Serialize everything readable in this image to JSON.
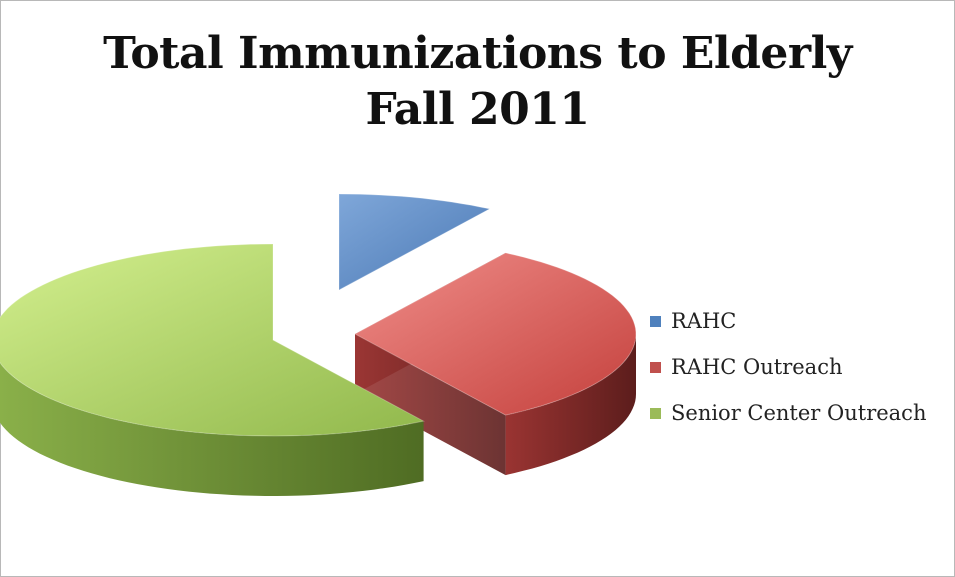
{
  "chart_data": {
    "type": "pie",
    "title": [
      "Total Immunizations to Elderly",
      "Fall 2011"
    ],
    "slices": [
      {
        "label": "RAHC",
        "value": 9,
        "color": "#4f81bd"
      },
      {
        "label": "RAHC Outreach",
        "value": 32,
        "color": "#c0504d"
      },
      {
        "label": "Senior Center Outreach",
        "value": 59,
        "color": "#9bbb59"
      }
    ],
    "style": "3d-exploded",
    "legend_position": "right"
  }
}
